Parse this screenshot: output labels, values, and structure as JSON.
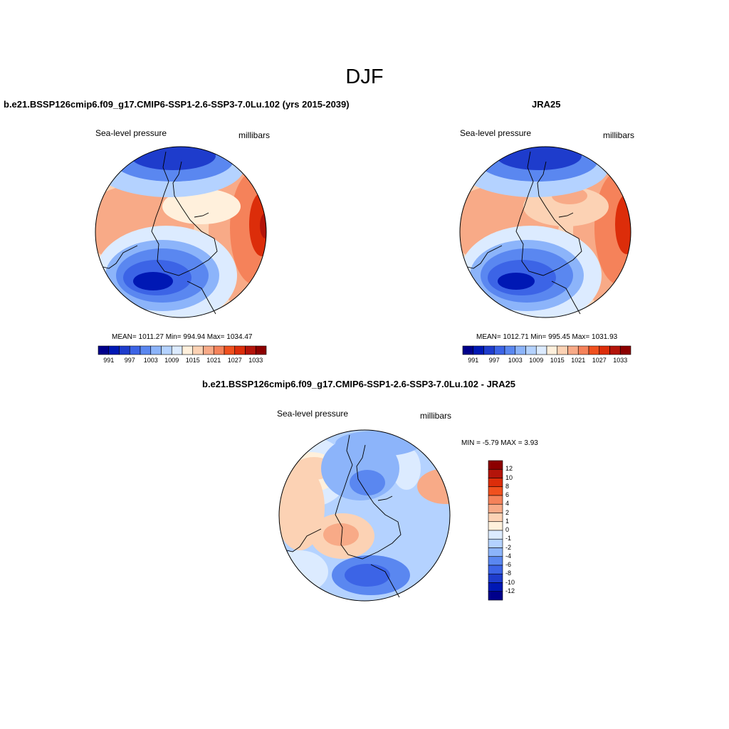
{
  "main_title": "DJF",
  "panels": {
    "model": {
      "title": "b.e21.BSSP126cmip6.f09_g17.CMIP6-SSP1-2.6-SSP3-7.0Lu.102 (yrs 2015-2039)",
      "variable": "Sea-level pressure",
      "units": "millibars",
      "stats": "MEAN= 1011.27  Min= 994.94  Max= 1034.47"
    },
    "obs": {
      "title": "JRA25",
      "variable": "Sea-level pressure",
      "units": "millibars",
      "stats": "MEAN= 1012.71  Min= 995.45  Max= 1031.93"
    },
    "diff": {
      "title": "b.e21.BSSP126cmip6.f09_g17.CMIP6-SSP1-2.6-SSP3-7.0Lu.102 - JRA25",
      "variable": "Sea-level pressure",
      "units": "millibars",
      "stats": "MIN =  -5.79 MAX =   3.93"
    }
  },
  "horizontal_colorbar": {
    "colors": [
      "#00008b",
      "#0018b4",
      "#1e3ccc",
      "#3c64e6",
      "#5a87f0",
      "#8cb4fa",
      "#b4d2ff",
      "#dcebff",
      "#fff0dc",
      "#fcd2b4",
      "#f8aa87",
      "#f5825a",
      "#f0501e",
      "#dc2d0a",
      "#b4140a",
      "#8c0000"
    ],
    "tick_labels": [
      "991",
      "997",
      "1003",
      "1009",
      "1015",
      "1021",
      "1027",
      "1033"
    ]
  },
  "vertical_colorbar": {
    "colors": [
      "#8c0000",
      "#b4140a",
      "#dc2d0a",
      "#f0501e",
      "#f5825a",
      "#f8aa87",
      "#fcd2b4",
      "#fff0dc",
      "#dcebff",
      "#b4d2ff",
      "#8cb4fa",
      "#5a87f0",
      "#3c64e6",
      "#1e3ccc",
      "#0018b4",
      "#00008b"
    ],
    "tick_labels": [
      "12",
      "10",
      "8",
      "6",
      "4",
      "2",
      "1",
      "0",
      "-1",
      "-2",
      "-4",
      "-6",
      "-8",
      "-10",
      "-12"
    ]
  }
}
